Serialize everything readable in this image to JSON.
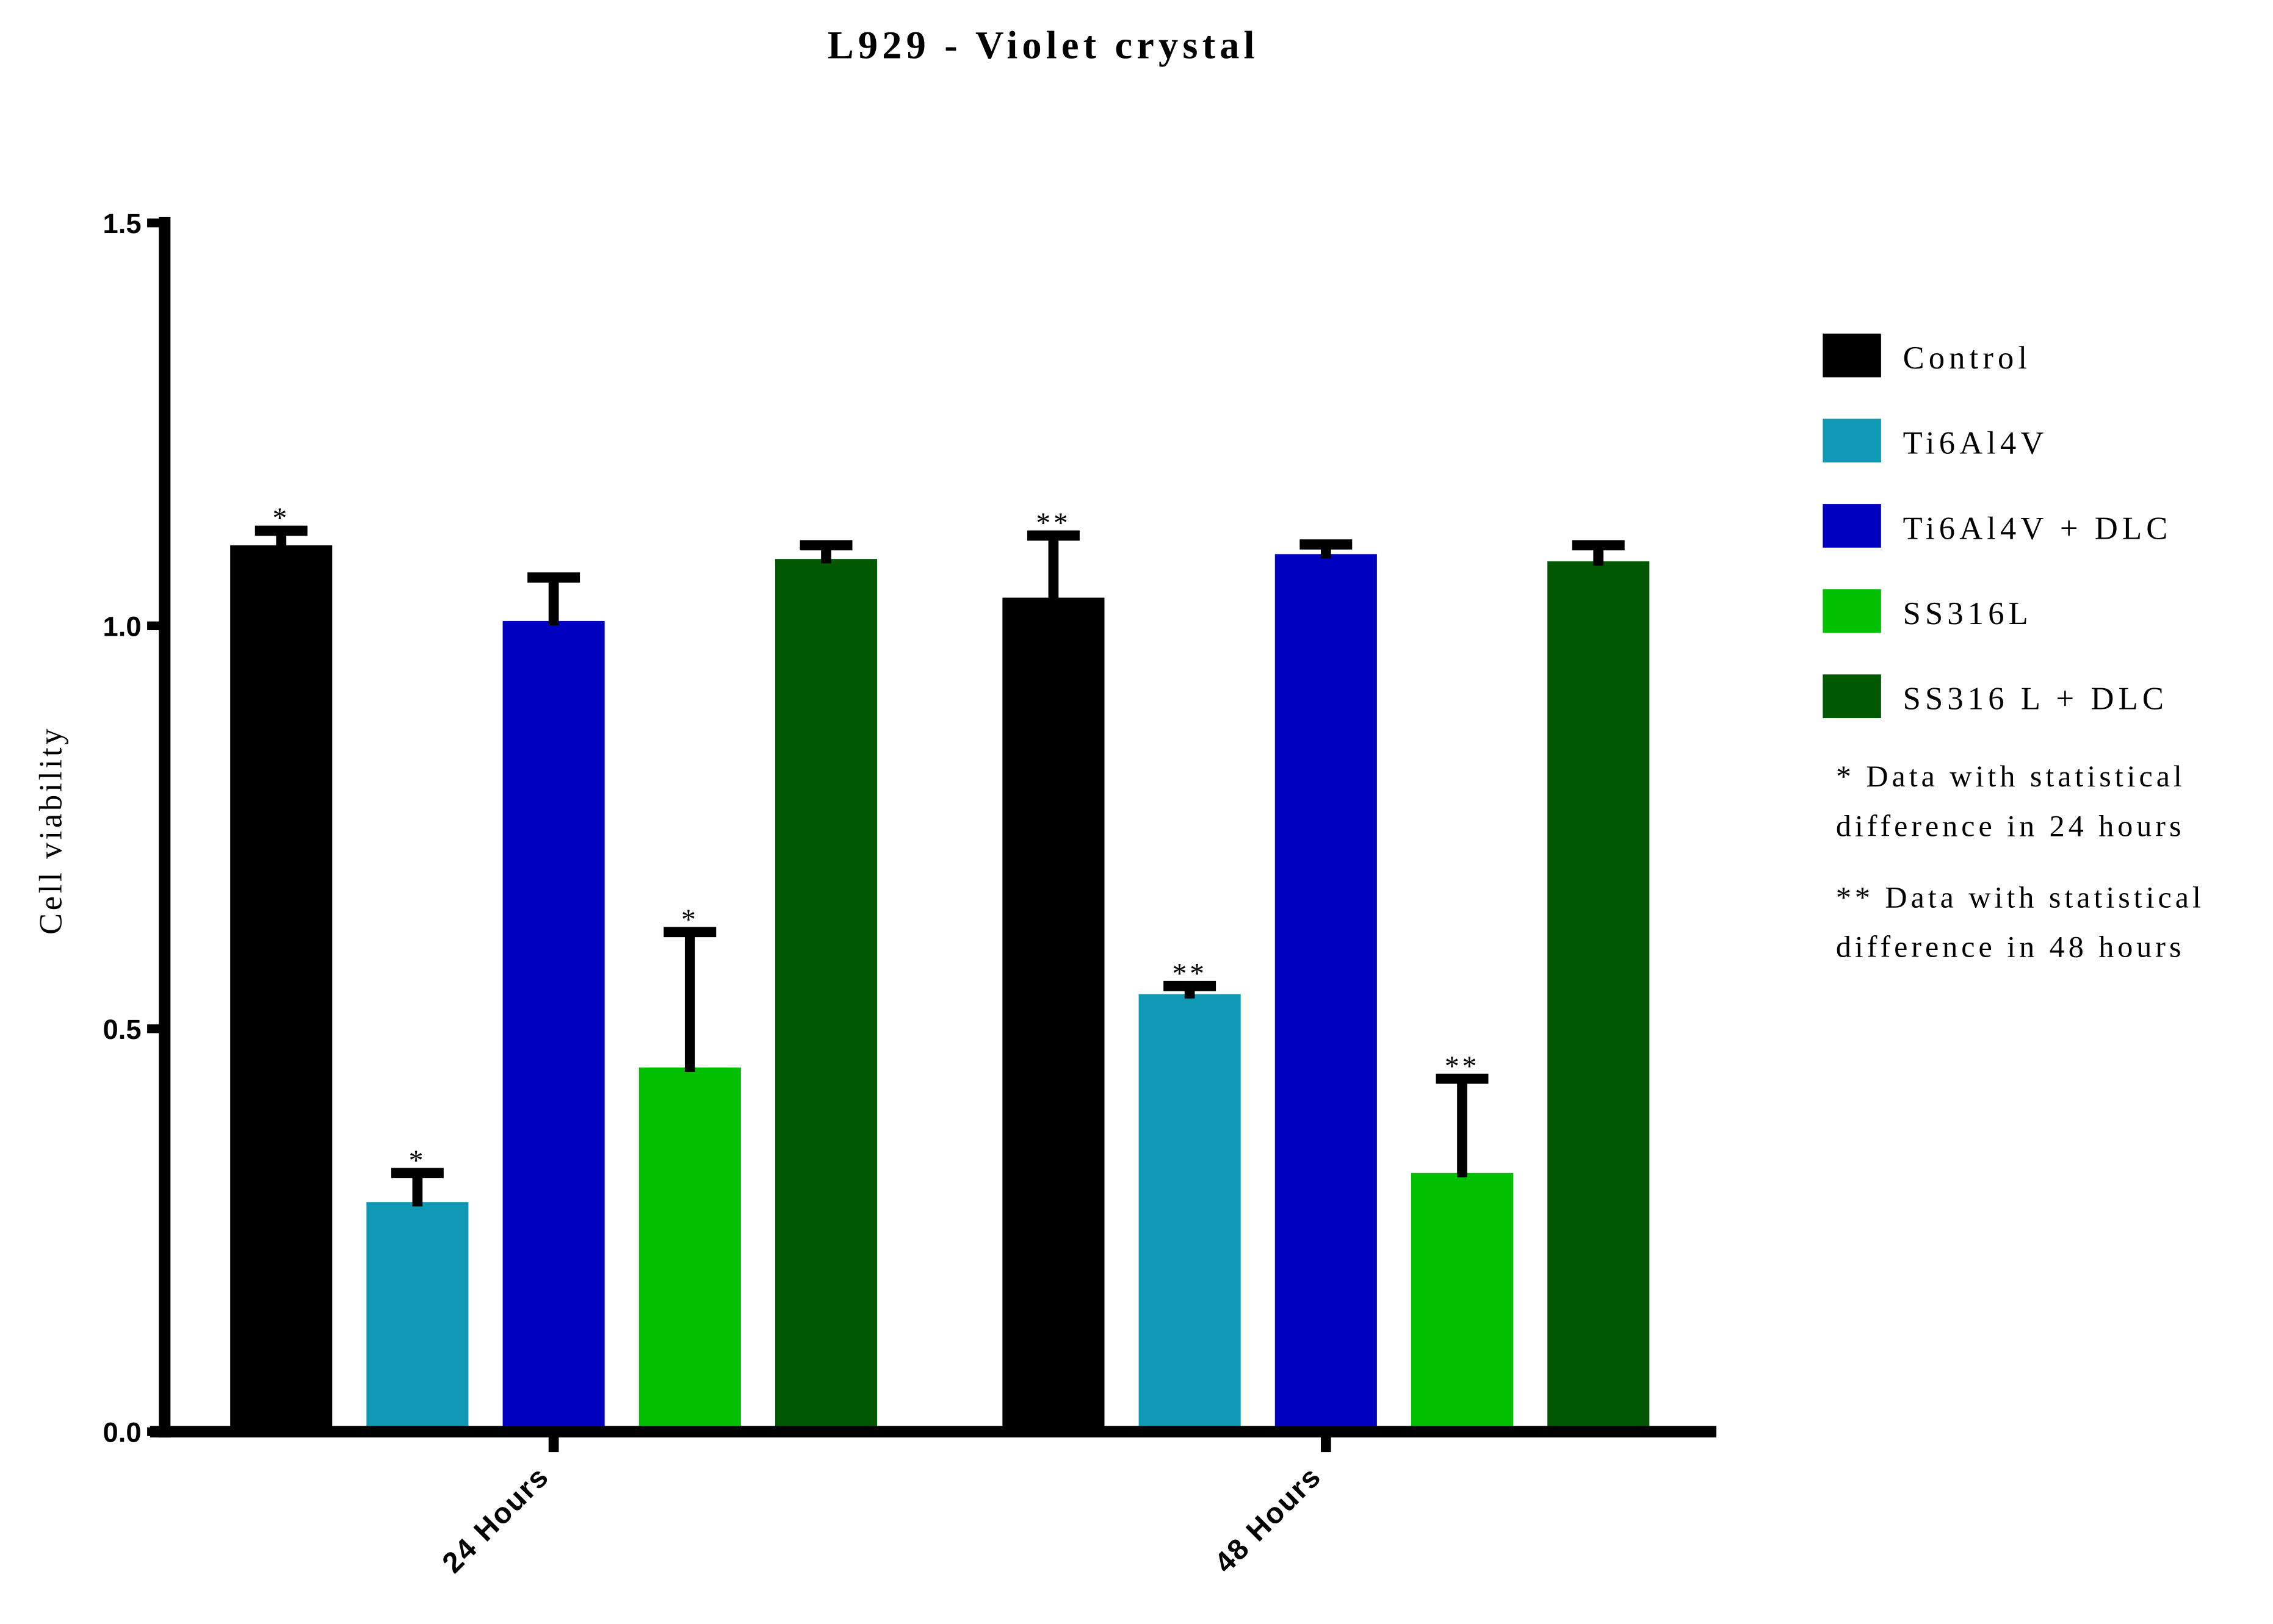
{
  "chart_data": {
    "type": "bar",
    "title": "L929 - Violet crystal",
    "xlabel": "",
    "ylabel": "Cell viability",
    "ylim": [
      0,
      1.5
    ],
    "yticks": [
      "0.0",
      "0.5",
      "1.0",
      "1.5"
    ],
    "categories": [
      "24 Hours",
      "48 Hours"
    ],
    "grid": false,
    "legend_position": "right",
    "series": [
      {
        "name": "Control",
        "color": "#000000",
        "values": [
          1.1,
          1.035
        ],
        "error": [
          0.018,
          0.077
        ],
        "marks": [
          "*",
          "**"
        ]
      },
      {
        "name": "Ti6Al4V",
        "color": "#1099b5",
        "values": [
          0.285,
          0.543
        ],
        "error": [
          0.036,
          0.01
        ],
        "marks": [
          "*",
          "**"
        ]
      },
      {
        "name": "Ti6Al4V + DLC",
        "color": "#0000c0",
        "values": [
          1.006,
          1.089
        ],
        "error": [
          0.054,
          0.012
        ],
        "marks": [
          "",
          ""
        ]
      },
      {
        "name": "SS316L",
        "color": "#00c000",
        "values": [
          0.452,
          0.321
        ],
        "error": [
          0.168,
          0.117
        ],
        "marks": [
          "*",
          "**"
        ]
      },
      {
        "name": "SS316 L + DLC",
        "color": "#005800",
        "values": [
          1.083,
          1.08
        ],
        "error": [
          0.017,
          0.02
        ],
        "marks": [
          "",
          ""
        ]
      }
    ],
    "notes": [
      [
        "* Data with statistical",
        "difference in 24 hours"
      ],
      [
        "** Data with statistical",
        "difference in 48 hours"
      ]
    ]
  }
}
